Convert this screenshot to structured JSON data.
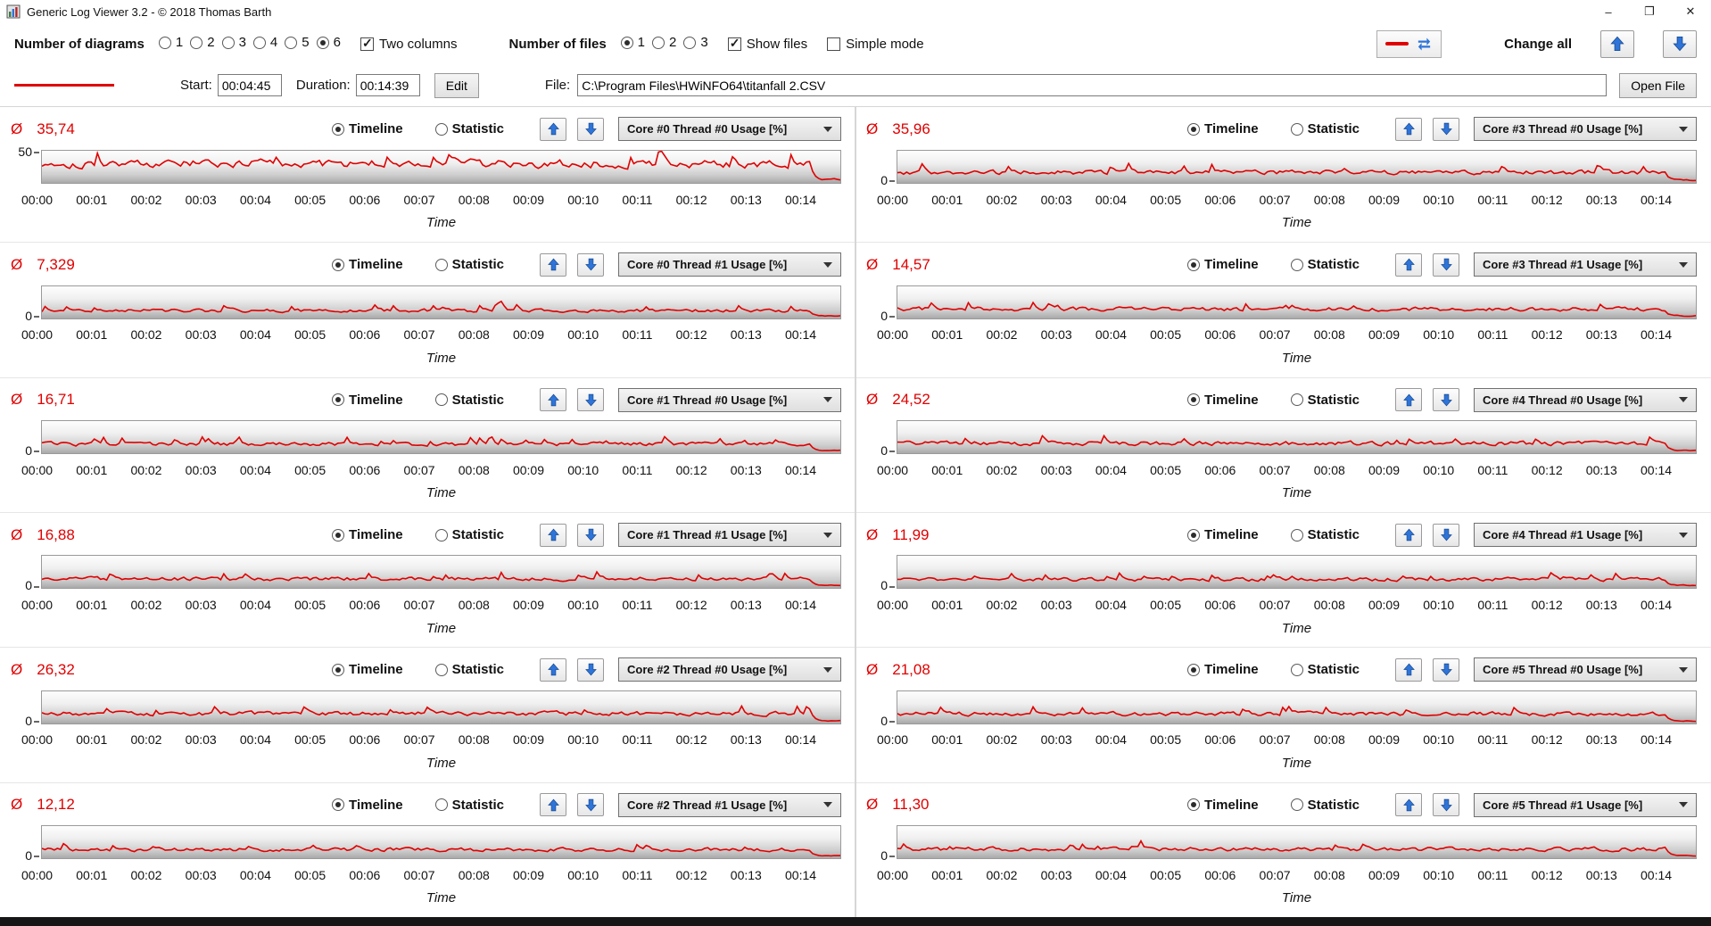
{
  "window": {
    "title": "Generic Log Viewer 3.2 - © 2018 Thomas Barth",
    "controls": {
      "minimize": "–",
      "maximize": "❐",
      "close": "✕"
    }
  },
  "toolbar": {
    "diagrams_label": "Number of diagrams",
    "diagram_options": [
      "1",
      "2",
      "3",
      "4",
      "5",
      "6"
    ],
    "diagrams_selected": "6",
    "two_columns": {
      "label": "Two columns",
      "checked": true
    },
    "files_label": "Number of files",
    "file_options": [
      "1",
      "2",
      "3"
    ],
    "files_selected": "1",
    "show_files": {
      "label": "Show files",
      "checked": true
    },
    "simple_mode": {
      "label": "Simple mode",
      "checked": false
    },
    "change_all_label": "Change all"
  },
  "filebar": {
    "start_label": "Start:",
    "start_value": "00:04:45",
    "duration_label": "Duration:",
    "duration_value": "00:14:39",
    "edit_label": "Edit",
    "file_label": "File:",
    "file_path": "C:\\Program Files\\HWiNFO64\\titanfall 2.CSV",
    "open_file_label": "Open File",
    "series_color": "#e00000"
  },
  "panel_common": {
    "avg_symbol": "Ø",
    "timeline_label": "Timeline",
    "statistic_label": "Statistic",
    "time_axis_label": "Time",
    "x_ticks": [
      "00:00",
      "00:01",
      "00:02",
      "00:03",
      "00:04",
      "00:05",
      "00:06",
      "00:07",
      "00:08",
      "00:09",
      "00:10",
      "00:11",
      "00:12",
      "00:13",
      "00:14"
    ]
  },
  "panels": [
    {
      "avg": "35,74",
      "channel": "Core #0 Thread #0 Usage [%]",
      "y_tick": "50",
      "mean": 35.74,
      "y_max": 60
    },
    {
      "avg": "7,329",
      "channel": "Core #0 Thread #1 Usage [%]",
      "y_tick": "0",
      "mean": 7.33,
      "y_max": 30
    },
    {
      "avg": "16,71",
      "channel": "Core #1 Thread #0 Usage [%]",
      "y_tick": "0",
      "mean": 16.71,
      "y_max": 60
    },
    {
      "avg": "16,88",
      "channel": "Core #1 Thread #1 Usage [%]",
      "y_tick": "0",
      "mean": 16.88,
      "y_max": 60
    },
    {
      "avg": "26,32",
      "channel": "Core #2 Thread #0 Usage [%]",
      "y_tick": "0",
      "mean": 26.32,
      "y_max": 85
    },
    {
      "avg": "12,12",
      "channel": "Core #2 Thread #1 Usage [%]",
      "y_tick": "0",
      "mean": 12.12,
      "y_max": 45
    },
    {
      "avg": "35,96",
      "channel": "Core #3 Thread #0 Usage [%]",
      "y_tick": "0",
      "mean": 35.96,
      "y_max": 110
    },
    {
      "avg": "14,57",
      "channel": "Core #3 Thread #1 Usage [%]",
      "y_tick": "0",
      "mean": 14.57,
      "y_max": 50
    },
    {
      "avg": "24,52",
      "channel": "Core #4 Thread #0 Usage [%]",
      "y_tick": "0",
      "mean": 24.52,
      "y_max": 80
    },
    {
      "avg": "11,99",
      "channel": "Core #4 Thread #1 Usage [%]",
      "y_tick": "0",
      "mean": 11.99,
      "y_max": 45
    },
    {
      "avg": "21,08",
      "channel": "Core #5 Thread #0 Usage [%]",
      "y_tick": "0",
      "mean": 21.08,
      "y_max": 70
    },
    {
      "avg": "11,30",
      "channel": "Core #5 Thread #1 Usage [%]",
      "y_tick": "0",
      "mean": 11.3,
      "y_max": 40
    }
  ]
}
